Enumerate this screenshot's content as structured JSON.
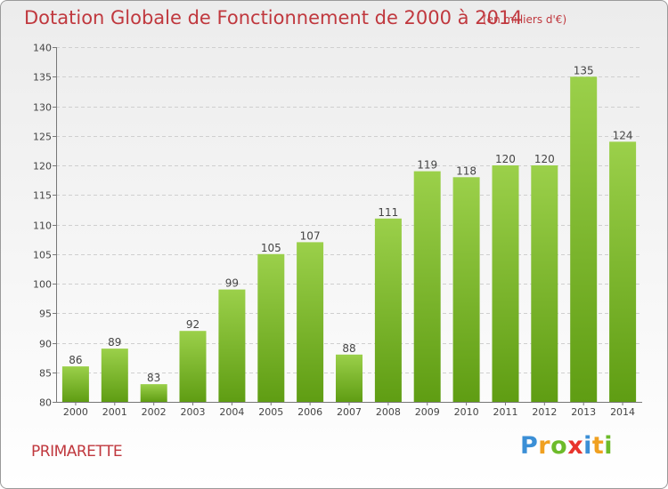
{
  "header": {
    "title": "Dotation Globale de Fonctionnement de 2000 à 2014",
    "unit_note": "(en milliers d'€)"
  },
  "footer": {
    "town": "PRIMARETTE",
    "brand_letters": [
      "P",
      "r",
      "o",
      "x",
      "i",
      "t",
      "i"
    ],
    "brand_colors": [
      "#3b8fd6",
      "#f0a020",
      "#6dbb2a",
      "#e8342c",
      "#3b8fd6",
      "#f0a020",
      "#6dbb2a"
    ]
  },
  "colors": {
    "accent": "#c0383e",
    "bar_top": "#9bd04a",
    "bar_bottom": "#5f9d13"
  },
  "chart_data": {
    "type": "bar",
    "categories": [
      "2000",
      "2001",
      "2002",
      "2003",
      "2004",
      "2005",
      "2006",
      "2007",
      "2008",
      "2009",
      "2010",
      "2011",
      "2012",
      "2013",
      "2014"
    ],
    "values": [
      86,
      89,
      83,
      92,
      99,
      105,
      107,
      88,
      111,
      119,
      118,
      120,
      120,
      135,
      124
    ],
    "ylim": [
      80,
      140
    ],
    "yticks": [
      80,
      85,
      90,
      95,
      100,
      105,
      110,
      115,
      120,
      125,
      130,
      135,
      140
    ],
    "grid": true,
    "data_labels": true
  }
}
